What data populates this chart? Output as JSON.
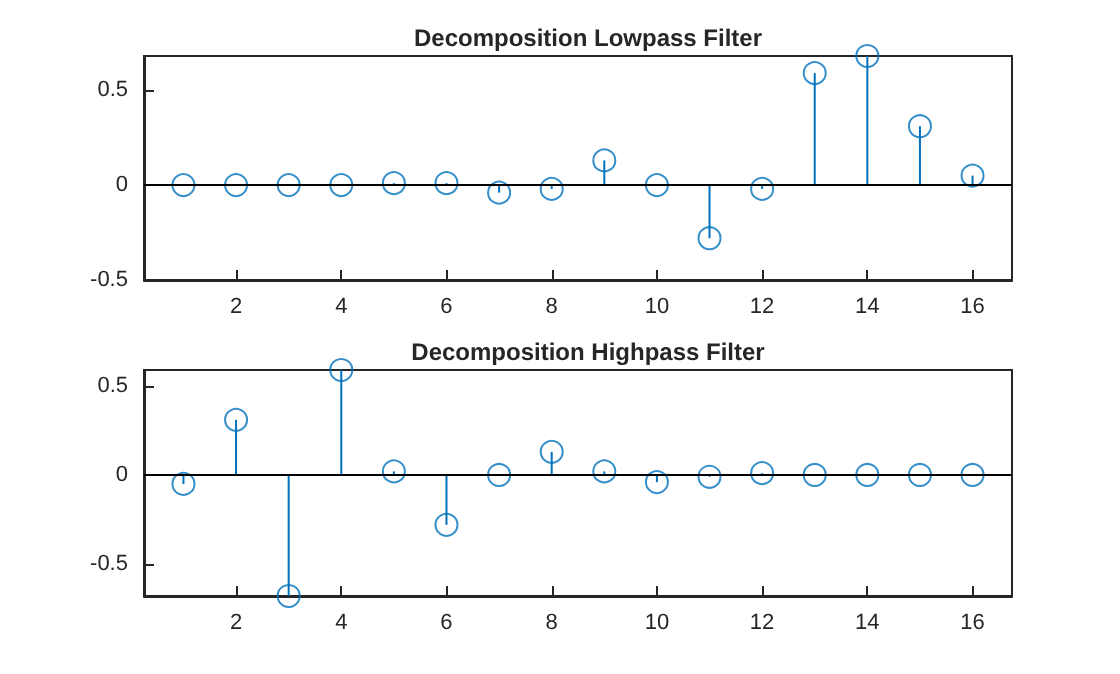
{
  "chart_data": [
    {
      "type": "lollipop",
      "title": "Decomposition Lowpass Filter",
      "x": [
        1,
        2,
        3,
        4,
        5,
        6,
        7,
        8,
        9,
        10,
        11,
        12,
        13,
        14,
        15,
        16
      ],
      "values": [
        0,
        0,
        0,
        0,
        0.01,
        0.01,
        -0.04,
        -0.02,
        0.13,
        0,
        -0.28,
        -0.02,
        0.59,
        0.68,
        0.31,
        0.05
      ],
      "color": "#0072bd",
      "marker": "circle",
      "xlim": [
        0.25,
        16.75
      ],
      "xticks": [
        2,
        4,
        6,
        8,
        10,
        12,
        14,
        16
      ],
      "ylim": [
        -0.5,
        0.68
      ],
      "yticks": [
        -0.5,
        0,
        0.5
      ],
      "ref_lines": [
        {
          "axis": "y",
          "value": 0,
          "color": "#000000"
        }
      ]
    },
    {
      "type": "lollipop",
      "title": "Decomposition Highpass Filter",
      "x": [
        1,
        2,
        3,
        4,
        5,
        6,
        7,
        8,
        9,
        10,
        11,
        12,
        13,
        14,
        15,
        16
      ],
      "values": [
        -0.05,
        0.31,
        -0.68,
        0.59,
        0.02,
        -0.28,
        0,
        0.13,
        0.02,
        -0.04,
        -0.01,
        0.01,
        0,
        0,
        0,
        0
      ],
      "color": "#0072bd",
      "marker": "circle",
      "xlim": [
        0.25,
        16.75
      ],
      "xticks": [
        2,
        4,
        6,
        8,
        10,
        12,
        14,
        16
      ],
      "ylim": [
        -0.68,
        0.59
      ],
      "yticks": [
        -0.5,
        0,
        0.5
      ],
      "ref_lines": [
        {
          "axis": "y",
          "value": 0,
          "color": "#000000"
        }
      ]
    }
  ]
}
